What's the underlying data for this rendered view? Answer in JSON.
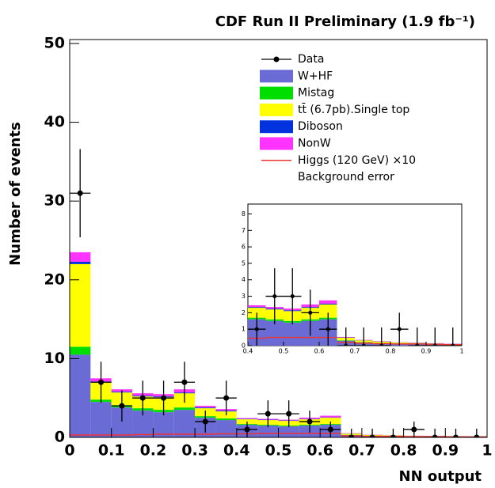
{
  "chart_data": [
    {
      "type": "stacked_histogram",
      "title": "CDF Run II Preliminary (1.9 fb⁻¹)",
      "x_label": "NN output",
      "y_label": "Number of events",
      "bins": [
        0,
        0.05,
        0.1,
        0.15,
        0.2,
        0.25,
        0.3,
        0.35,
        0.4,
        0.45,
        0.5,
        0.55,
        0.6,
        0.65,
        0.7,
        0.75,
        0.8,
        0.85,
        0.9,
        0.95,
        1
      ],
      "series": [
        {
          "name": "W+HF",
          "color": "#6b6bd6",
          "values": [
            10.5,
            4.5,
            3.8,
            3.4,
            3.2,
            3.5,
            2.5,
            2.2,
            1.6,
            1.5,
            1.4,
            1.5,
            1.6,
            0.3,
            0.2,
            0.15,
            0.12,
            0.1,
            0.08,
            0.06
          ]
        },
        {
          "name": "Mistag",
          "color": "#00dd00",
          "values": [
            1.0,
            0.3,
            0.3,
            0.3,
            0.3,
            0.3,
            0.2,
            0.2,
            0.1,
            0.1,
            0.1,
            0.1,
            0.1,
            0.03,
            0.02,
            0.02,
            0.01,
            0.01,
            0.01,
            0.01
          ]
        },
        {
          "name": "tt̄ (6.7pb).Single top",
          "color": "#ffff00",
          "values": [
            10.5,
            2.2,
            1.6,
            1.5,
            1.6,
            1.8,
            1.0,
            0.9,
            0.6,
            0.6,
            0.6,
            0.7,
            0.8,
            0.15,
            0.1,
            0.08,
            0.06,
            0.05,
            0.04,
            0.03
          ]
        },
        {
          "name": "Diboson",
          "color": "#0033dd",
          "values": [
            0.3,
            0.1,
            0.1,
            0.1,
            0.1,
            0.1,
            0.1,
            0.1,
            0.05,
            0.05,
            0.05,
            0.05,
            0.05,
            0.02,
            0.01,
            0.01,
            0.01,
            0.01,
            0.01,
            0.01
          ]
        },
        {
          "name": "NonW",
          "color": "#ff33ff",
          "values": [
            1.2,
            0.4,
            0.3,
            0.3,
            0.3,
            0.4,
            0.2,
            0.2,
            0.1,
            0.1,
            0.1,
            0.15,
            0.2,
            0.03,
            0.02,
            0.02,
            0.01,
            0.01,
            0.01,
            0.01
          ]
        }
      ],
      "signal": {
        "name": "Higgs (120 GeV) ×10",
        "color": "#ee3333",
        "values": [
          0.3,
          0.3,
          0.3,
          0.35,
          0.4,
          0.4,
          0.4,
          0.45,
          0.45,
          0.5,
          0.5,
          0.5,
          0.5,
          0.2,
          0.15,
          0.12,
          0.1,
          0.1,
          0.08,
          0.06
        ]
      },
      "data": {
        "name": "Data",
        "color": "#000000",
        "values": [
          31,
          7,
          4,
          5,
          5,
          7,
          2,
          5,
          1,
          3,
          3,
          2,
          1,
          0,
          0,
          0,
          1,
          0,
          0,
          0
        ],
        "errors": [
          5.6,
          2.6,
          2,
          2.2,
          2.2,
          2.6,
          1.4,
          2.2,
          1,
          1.7,
          1.7,
          1.4,
          1,
          1.1,
          1.1,
          1.1,
          1,
          1.1,
          1.1,
          1.1
        ]
      },
      "background_error_label": "Background error",
      "xlim": [
        0,
        1
      ],
      "ylim": [
        0,
        50.5
      ],
      "xticks": [
        0,
        0.1,
        0.2,
        0.3,
        0.4,
        0.5,
        0.6,
        0.7,
        0.8,
        0.9,
        1
      ],
      "yticks": [
        0,
        10,
        20,
        30,
        40,
        50
      ]
    },
    {
      "type": "inset",
      "xlim": [
        0.4,
        1
      ],
      "ylim": [
        0,
        8.6
      ],
      "xticks": [
        0.4,
        0.5,
        0.6,
        0.7,
        0.8,
        0.9,
        1
      ],
      "yticks": [
        0,
        1,
        2,
        3,
        4,
        5,
        6,
        7,
        8
      ]
    }
  ]
}
